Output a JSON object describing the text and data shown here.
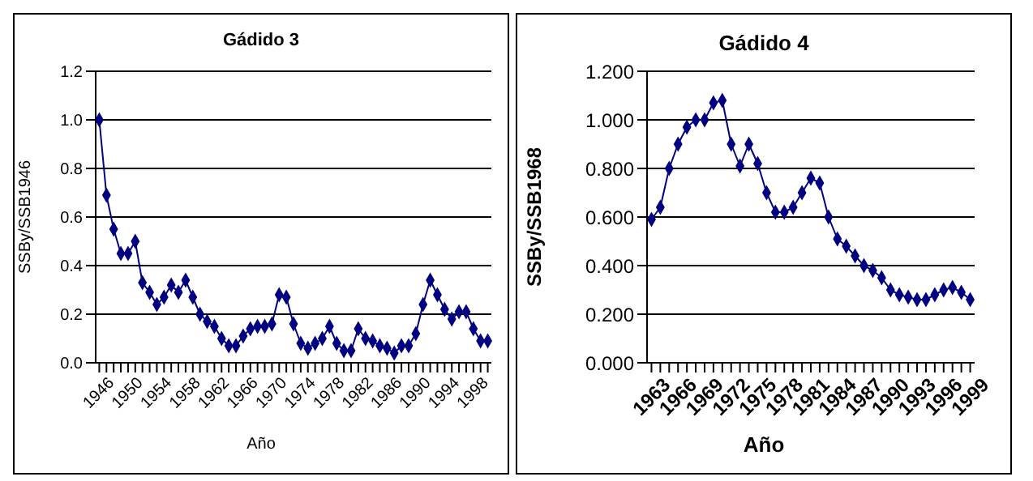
{
  "chart_data": [
    {
      "type": "line",
      "title": "Gádido 3",
      "xlabel": "Año",
      "ylabel": "SSBy/SSB1946",
      "categories": [
        "1946",
        null,
        null,
        null,
        "1950",
        null,
        null,
        null,
        "1954",
        null,
        null,
        null,
        "1958",
        null,
        null,
        null,
        "1962",
        null,
        null,
        null,
        "1966",
        null,
        null,
        null,
        "1970",
        null,
        null,
        null,
        "1974",
        null,
        null,
        null,
        "1978",
        null,
        null,
        null,
        "1982",
        null,
        null,
        null,
        "1986",
        null,
        null,
        null,
        "1990",
        null,
        null,
        null,
        "1994",
        null,
        null,
        null,
        "1998",
        null,
        null
      ],
      "series": [
        {
          "color": "#000080",
          "values": [
            1.0,
            0.69,
            0.55,
            0.45,
            0.45,
            0.5,
            0.33,
            0.29,
            0.24,
            0.27,
            0.32,
            0.29,
            0.34,
            0.27,
            0.2,
            0.17,
            0.15,
            0.1,
            0.07,
            0.07,
            0.11,
            0.14,
            0.15,
            0.15,
            0.16,
            0.28,
            0.27,
            0.16,
            0.08,
            0.06,
            0.08,
            0.1,
            0.15,
            0.08,
            0.05,
            0.05,
            0.14,
            0.1,
            0.09,
            0.07,
            0.06,
            0.04,
            0.07,
            0.07,
            0.12,
            0.24,
            0.34,
            0.28,
            0.22,
            0.18,
            0.21,
            0.21,
            0.14,
            0.09,
            0.09
          ]
        }
      ],
      "ylim": [
        0,
        1.2
      ],
      "yticks": [
        {
          "value": 0,
          "label": "0.0"
        },
        {
          "value": 0.2,
          "label": "0.2"
        },
        {
          "value": 0.4,
          "label": "0.4"
        },
        {
          "value": 0.6,
          "label": "0.6"
        },
        {
          "value": 0.8,
          "label": "0.8"
        },
        {
          "value": 1,
          "label": "1.0"
        },
        {
          "value": 1.2,
          "label": "1.2"
        }
      ],
      "grid": "y",
      "marker": "diamond",
      "line_style": "solid"
    },
    {
      "type": "line",
      "title": "Gádido 4",
      "xlabel": "Año",
      "ylabel": "SSBy/SSB1968",
      "categories": [
        "1963",
        null,
        null,
        "1966",
        null,
        null,
        "1969",
        null,
        null,
        "1972",
        null,
        null,
        "1975",
        null,
        null,
        "1978",
        null,
        null,
        "1981",
        null,
        null,
        "1984",
        null,
        null,
        "1987",
        null,
        null,
        "1990",
        null,
        null,
        "1993",
        null,
        null,
        "1996",
        null,
        null,
        "1999"
      ],
      "series": [
        {
          "color": "#000080",
          "values": [
            0.59,
            0.64,
            0.8,
            0.9,
            0.97,
            1.0,
            1.0,
            1.07,
            1.08,
            0.9,
            0.81,
            0.9,
            0.82,
            0.7,
            0.62,
            0.62,
            0.64,
            0.7,
            0.76,
            0.74,
            0.6,
            0.51,
            0.48,
            0.44,
            0.4,
            0.38,
            0.35,
            0.3,
            0.28,
            0.27,
            0.26,
            0.26,
            0.28,
            0.3,
            0.31,
            0.29,
            0.26
          ]
        }
      ],
      "ylim": [
        0,
        1.2
      ],
      "yticks": [
        {
          "value": 0,
          "label": "0.000"
        },
        {
          "value": 0.2,
          "label": "0.200"
        },
        {
          "value": 0.4,
          "label": "0.400"
        },
        {
          "value": 0.6,
          "label": "0.600"
        },
        {
          "value": 0.8,
          "label": "0.800"
        },
        {
          "value": 1,
          "label": "1.000"
        },
        {
          "value": 1.2,
          "label": "1.200"
        }
      ],
      "grid": "y",
      "marker": "diamond",
      "line_style": "solid"
    }
  ]
}
